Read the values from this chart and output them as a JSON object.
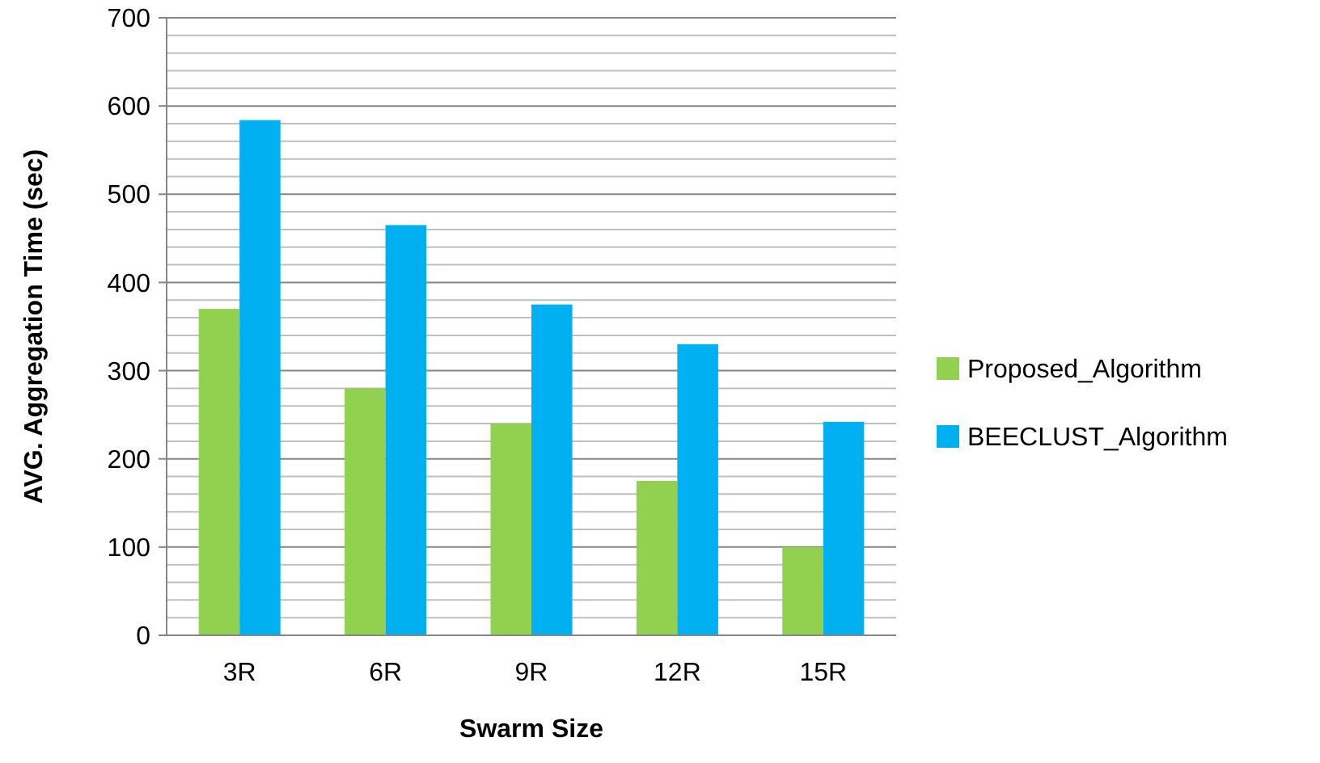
{
  "chart_data": {
    "type": "bar",
    "xlabel": "Swarm Size",
    "ylabel": "AVG. Aggregation Time (sec)",
    "categories": [
      "3R",
      "6R",
      "9R",
      "12R",
      "15R"
    ],
    "series": [
      {
        "name": "Proposed_Algorithm",
        "color": "#92d050",
        "values": [
          370,
          280,
          240,
          175,
          100
        ]
      },
      {
        "name": "BEECLUST_Algorithm",
        "color": "#00b0f0",
        "values": [
          584,
          465,
          375,
          330,
          242
        ]
      }
    ],
    "ylim": [
      0,
      700
    ],
    "yticks": [
      0,
      {
        "value": 20,
        "label": null
      },
      {
        "value": 40,
        "label": null
      },
      {
        "value": 60,
        "label": null
      },
      {
        "value": 80,
        "label": null
      },
      100,
      {
        "value": 120,
        "label": null
      },
      {
        "value": 140,
        "label": null
      },
      {
        "value": 160,
        "label": null
      },
      {
        "value": 180,
        "label": null
      },
      200,
      {
        "value": 220,
        "label": null
      },
      {
        "value": 240,
        "label": null
      },
      {
        "value": 260,
        "label": null
      },
      {
        "value": 280,
        "label": null
      },
      300,
      {
        "value": 320,
        "label": null
      },
      {
        "value": 340,
        "label": null
      },
      {
        "value": 360,
        "label": null
      },
      {
        "value": 380,
        "label": null
      },
      400,
      {
        "value": 420,
        "label": null
      },
      {
        "value": 440,
        "label": null
      },
      {
        "value": 460,
        "label": null
      },
      {
        "value": 480,
        "label": null
      },
      500,
      {
        "value": 520,
        "label": null
      },
      {
        "value": 540,
        "label": null
      },
      {
        "value": 560,
        "label": null
      },
      {
        "value": 580,
        "label": null
      },
      600,
      {
        "value": 620,
        "label": null
      },
      {
        "value": 640,
        "label": null
      },
      {
        "value": 660,
        "label": null
      },
      {
        "value": 680,
        "label": null
      },
      700
    ],
    "grid": true,
    "legend": "right"
  }
}
